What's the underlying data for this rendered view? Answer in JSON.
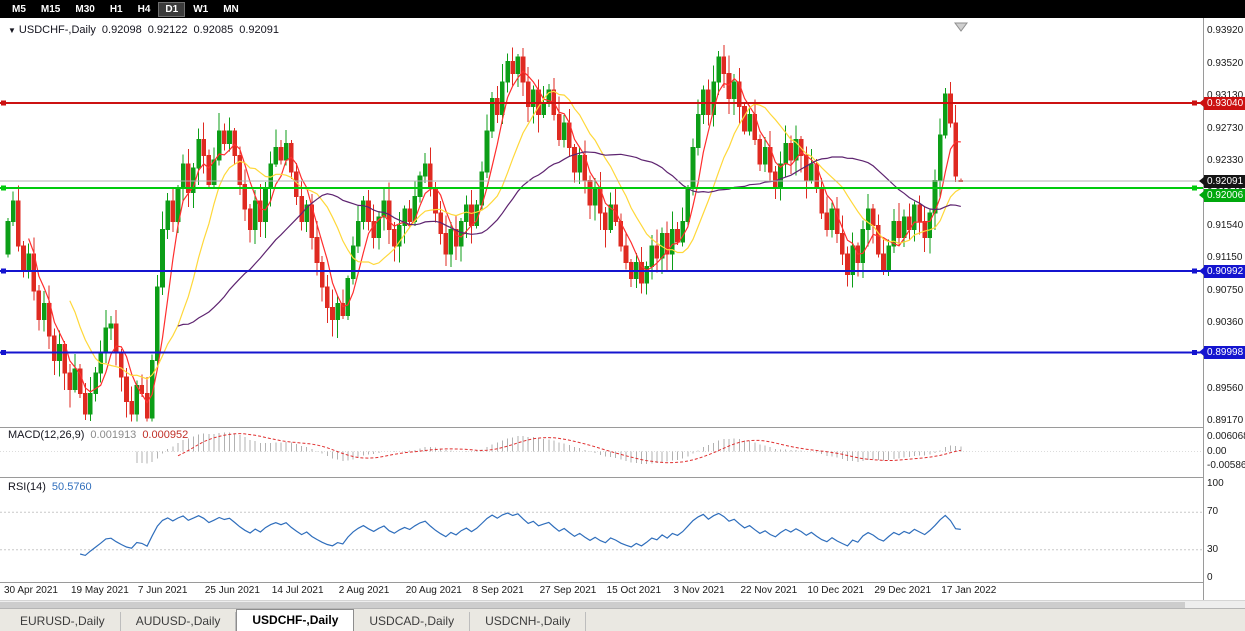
{
  "toolbar": {
    "timeframes": [
      {
        "label": "M5",
        "active": false
      },
      {
        "label": "M15",
        "active": false
      },
      {
        "label": "M30",
        "active": false
      },
      {
        "label": "H1",
        "active": false
      },
      {
        "label": "H4",
        "active": false
      },
      {
        "label": "D1",
        "active": true
      },
      {
        "label": "W1",
        "active": false
      },
      {
        "label": "MN",
        "active": false
      }
    ]
  },
  "ohlc_header": {
    "menu_icon": "▼",
    "symbol": "USDCHF-,Daily",
    "open": "0.92098",
    "high": "0.92122",
    "low": "0.92085",
    "close": "0.92091"
  },
  "chart_data": {
    "type": "candlestick",
    "title": "USDCHF-,Daily",
    "x_labels": [
      "30 Apr 2021",
      "19 May 2021",
      "7 Jun 2021",
      "25 Jun 2021",
      "14 Jul 2021",
      "2 Aug 2021",
      "20 Aug 2021",
      "8 Sep 2021",
      "27 Sep 2021",
      "15 Oct 2021",
      "3 Nov 2021",
      "22 Nov 2021",
      "10 Dec 2021",
      "29 Dec 2021",
      "17 Jan 2022"
    ],
    "y_axis_ticks": [
      "0.93920",
      "0.93520",
      "0.93130",
      "0.92730",
      "0.92330",
      "0.91940",
      "0.91540",
      "0.91150",
      "0.90750",
      "0.90360",
      "0.89960",
      "0.89560",
      "0.89170"
    ],
    "ylim": [
      0.8912,
      0.9408
    ],
    "closes": [
      0.916,
      0.9185,
      0.913,
      0.91,
      0.912,
      0.9075,
      0.904,
      0.906,
      0.902,
      0.899,
      0.901,
      0.8975,
      0.8955,
      0.898,
      0.895,
      0.8925,
      0.895,
      0.8975,
      0.9,
      0.903,
      0.9035,
      0.9,
      0.897,
      0.894,
      0.8925,
      0.896,
      0.895,
      0.892,
      0.899,
      0.908,
      0.915,
      0.9185,
      0.916,
      0.92,
      0.923,
      0.9195,
      0.9225,
      0.926,
      0.924,
      0.9205,
      0.9235,
      0.927,
      0.9255,
      0.927,
      0.924,
      0.9205,
      0.9175,
      0.915,
      0.9185,
      0.916,
      0.92,
      0.923,
      0.925,
      0.9235,
      0.9255,
      0.922,
      0.919,
      0.916,
      0.918,
      0.914,
      0.911,
      0.908,
      0.9055,
      0.904,
      0.906,
      0.9045,
      0.909,
      0.913,
      0.916,
      0.9185,
      0.916,
      0.914,
      0.9165,
      0.9185,
      0.915,
      0.913,
      0.9155,
      0.9175,
      0.916,
      0.919,
      0.9215,
      0.923,
      0.92,
      0.917,
      0.9145,
      0.912,
      0.915,
      0.913,
      0.916,
      0.918,
      0.9155,
      0.918,
      0.922,
      0.927,
      0.931,
      0.929,
      0.933,
      0.9355,
      0.934,
      0.936,
      0.933,
      0.93,
      0.932,
      0.929,
      0.9305,
      0.932,
      0.929,
      0.926,
      0.928,
      0.925,
      0.922,
      0.924,
      0.921,
      0.918,
      0.92,
      0.917,
      0.915,
      0.918,
      0.916,
      0.913,
      0.911,
      0.909,
      0.911,
      0.9085,
      0.9105,
      0.913,
      0.9115,
      0.9145,
      0.912,
      0.915,
      0.9135,
      0.916,
      0.92,
      0.925,
      0.929,
      0.932,
      0.929,
      0.933,
      0.936,
      0.934,
      0.931,
      0.933,
      0.93,
      0.927,
      0.929,
      0.926,
      0.923,
      0.925,
      0.922,
      0.92,
      0.923,
      0.9255,
      0.9235,
      0.926,
      0.924,
      0.921,
      0.923,
      0.92,
      0.917,
      0.915,
      0.9175,
      0.9145,
      0.912,
      0.9095,
      0.913,
      0.911,
      0.915,
      0.9175,
      0.9155,
      0.912,
      0.91,
      0.913,
      0.916,
      0.914,
      0.9165,
      0.915,
      0.918,
      0.916,
      0.914,
      0.917,
      0.921,
      0.9265,
      0.9315,
      0.928,
      0.9215,
      0.92091
    ],
    "last_candle": {
      "open": 0.92098,
      "high": 0.92122,
      "low": 0.92085,
      "close": 0.92091
    },
    "current_price": {
      "value": 0.92091,
      "label": "0.92091"
    },
    "horizontal_lines": [
      {
        "price": 0.9304,
        "label": "0.93040",
        "color": "red"
      },
      {
        "price": 0.92006,
        "label": "0.92006",
        "color": "green"
      },
      {
        "price": 0.90992,
        "label": "0.90992",
        "color": "blue"
      },
      {
        "price": 0.89998,
        "label": "0.89998",
        "color": "blue"
      }
    ],
    "moving_averages": [
      {
        "period": 5,
        "color_key": "ma_fast"
      },
      {
        "period": 13,
        "color_key": "ma_mid"
      },
      {
        "period": 34,
        "color_key": "ma_slow"
      }
    ],
    "indicators": {
      "macd": {
        "name": "MACD(12,26,9)",
        "fast": 12,
        "slow": 26,
        "signal": 9,
        "value_main": "0.001913",
        "value_signal": "0.000952",
        "axis_labels": [
          "0.006068",
          "0.00",
          "-0.005869"
        ]
      },
      "rsi": {
        "name": "RSI(14)",
        "period": 14,
        "value": "50.5760",
        "axis_labels": [
          "100",
          "70",
          "30",
          "0"
        ],
        "levels": [
          70,
          30
        ]
      }
    }
  },
  "colors": {
    "bull": "#0c9e17",
    "bear": "#df2a21",
    "ma_fast": "#ff2e2e",
    "ma_mid": "#ffd83a",
    "ma_slow": "#5e2470",
    "macd_hist": "#b2b2b2",
    "macd_signal": "#e03030",
    "rsi_line": "#2f6ebc",
    "line_red": "#cc1111",
    "line_green": "#00ca0c",
    "line_blue": "#1414cf",
    "box_red": "#cc1111",
    "box_green": "#00a80d",
    "box_blue": "#1414cf",
    "box_current": "#151515",
    "current_line": "#b0b0b0"
  },
  "tabs": [
    {
      "label": "EURUSD-,Daily",
      "active": false
    },
    {
      "label": "AUDUSD-,Daily",
      "active": false
    },
    {
      "label": "USDCHF-,Daily",
      "active": true
    },
    {
      "label": "USDCAD-,Daily",
      "active": false
    },
    {
      "label": "USDCNH-,Daily",
      "active": false
    }
  ]
}
